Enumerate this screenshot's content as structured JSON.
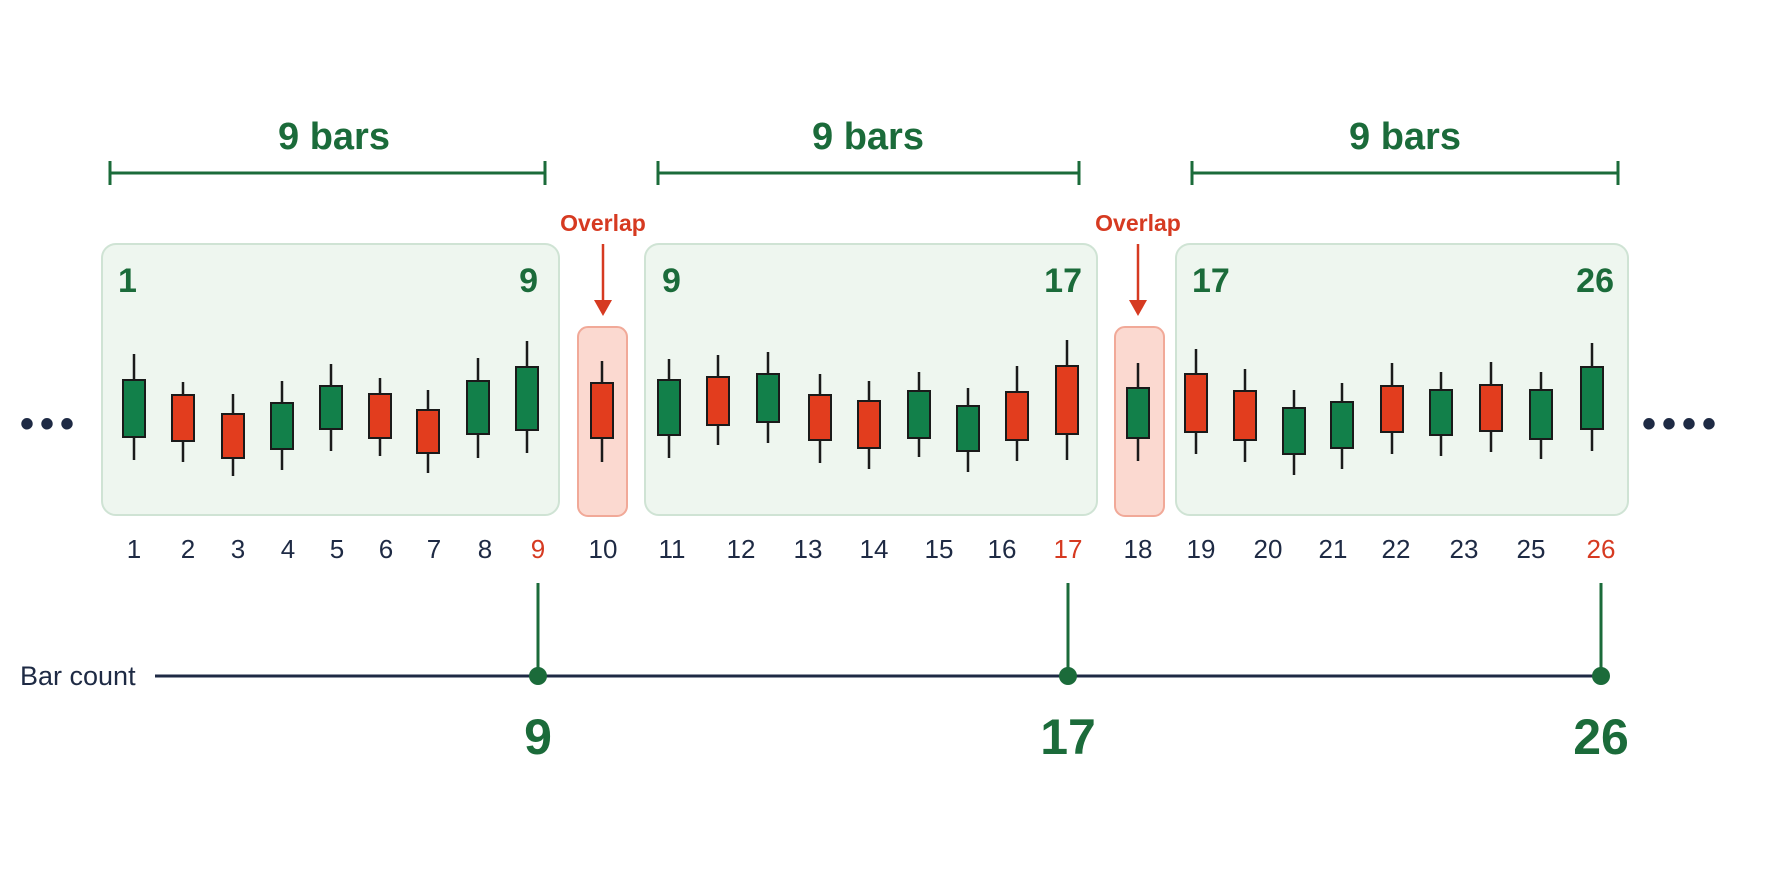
{
  "colors": {
    "bull": "#12804a",
    "bear": "#e23d1e",
    "accent_green": "#1b6b3a",
    "accent_red": "#d63a21",
    "ink": "#1e2a44",
    "group_fill": "#eef6ef",
    "group_stroke": "#cfe3d4",
    "overlap_fill": "#fbd9d0",
    "overlap_stroke": "#f1a998"
  },
  "ellipsis_left": "•••",
  "ellipsis_right": "••••",
  "groups": [
    {
      "bracket_label": "9 bars",
      "start_label": "1",
      "end_label": "9"
    },
    {
      "bracket_label": "9 bars",
      "start_label": "9",
      "end_label": "17"
    },
    {
      "bracket_label": "9 bars",
      "start_label": "17",
      "end_label": "26"
    }
  ],
  "overlaps": [
    {
      "label": "Overlap",
      "bar": "10"
    },
    {
      "label": "Overlap",
      "bar": "18"
    }
  ],
  "bar_numbers": [
    "1",
    "2",
    "3",
    "4",
    "5",
    "6",
    "7",
    "8",
    "9",
    "10",
    "11",
    "12",
    "13",
    "14",
    "15",
    "16",
    "17",
    "18",
    "19",
    "20",
    "21",
    "22",
    "23",
    "25",
    "26"
  ],
  "highlighted_numbers": [
    "9",
    "17",
    "26"
  ],
  "candles": [
    {
      "n": "1",
      "dir": "bull"
    },
    {
      "n": "2",
      "dir": "bear"
    },
    {
      "n": "3",
      "dir": "bear"
    },
    {
      "n": "4",
      "dir": "bull"
    },
    {
      "n": "5",
      "dir": "bull"
    },
    {
      "n": "6",
      "dir": "bear"
    },
    {
      "n": "7",
      "dir": "bear"
    },
    {
      "n": "8",
      "dir": "bull"
    },
    {
      "n": "9",
      "dir": "bull"
    },
    {
      "n": "10",
      "dir": "bear"
    },
    {
      "n": "11",
      "dir": "bull"
    },
    {
      "n": "12",
      "dir": "bear"
    },
    {
      "n": "13",
      "dir": "bull"
    },
    {
      "n": "14",
      "dir": "bull"
    },
    {
      "n": "15",
      "dir": "bear"
    },
    {
      "n": "16",
      "dir": "bull"
    },
    {
      "n": "17",
      "dir": "bear"
    },
    {
      "n": "18",
      "dir": "bull"
    },
    {
      "n": "19",
      "dir": "bear"
    },
    {
      "n": "20",
      "dir": "bull"
    },
    {
      "n": "21",
      "dir": "bull"
    },
    {
      "n": "22",
      "dir": "bear"
    },
    {
      "n": "23",
      "dir": "bear"
    },
    {
      "n": "25",
      "dir": "bull"
    },
    {
      "n": "26",
      "dir": "bear"
    },
    {
      "n": "",
      "dir": "bull"
    },
    {
      "n": "",
      "dir": "bear"
    },
    {
      "n": "",
      "dir": "bull"
    }
  ],
  "timeline": {
    "label": "Bar count",
    "markers": [
      "9",
      "17",
      "26"
    ]
  }
}
